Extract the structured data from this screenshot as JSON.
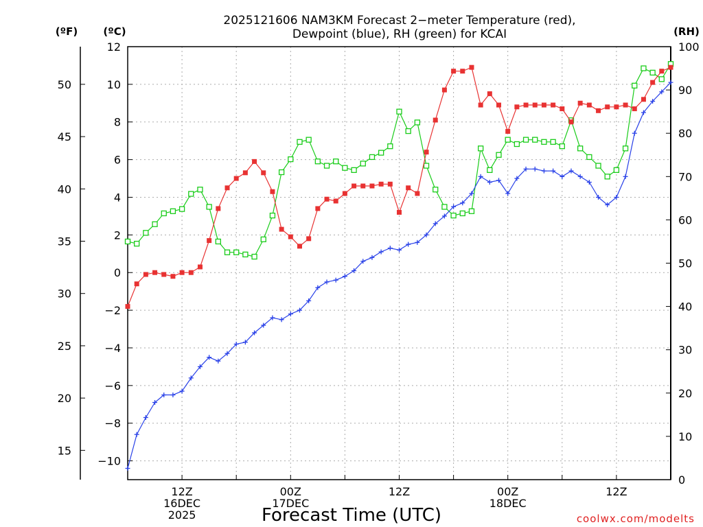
{
  "chart_data": {
    "type": "line",
    "title_line1": "2025121606 NAM3KM Forecast 2−meter Temperature (red),",
    "title_line2": "Dewpoint (blue), RH (green) for KCAI",
    "xlabel": "Forecast Time (UTC)",
    "credit": "coolwx.com/modelts",
    "unit_left_f": "(ºF)",
    "unit_left_c": "(ºC)",
    "unit_right": "(RH)",
    "x_start_hour": 6,
    "x_end_hour": 66,
    "c_range": [
      -11,
      12
    ],
    "rh_range": [
      0,
      100
    ],
    "c_ticks": [
      "−10",
      "−8",
      "−6",
      "−4",
      "−2",
      "0",
      "2",
      "4",
      "6",
      "8",
      "10",
      "12"
    ],
    "c_tick_values": [
      -10,
      -8,
      -6,
      -4,
      -2,
      0,
      2,
      4,
      6,
      8,
      10,
      12
    ],
    "f_ticks": [
      "15",
      "20",
      "25",
      "30",
      "35",
      "40",
      "45",
      "50"
    ],
    "f_tick_values": [
      15,
      20,
      25,
      30,
      35,
      40,
      45,
      50
    ],
    "rh_ticks": [
      "0",
      "10",
      "20",
      "30",
      "40",
      "50",
      "60",
      "70",
      "80",
      "90",
      "100"
    ],
    "rh_tick_values": [
      0,
      10,
      20,
      30,
      40,
      50,
      60,
      70,
      80,
      90,
      100
    ],
    "x_tick_labels": [
      {
        "hour": 12,
        "lines": [
          "12Z",
          "16DEC",
          "2025"
        ]
      },
      {
        "hour": 24,
        "lines": [
          "00Z",
          "17DEC"
        ]
      },
      {
        "hour": 36,
        "lines": [
          "12Z"
        ]
      },
      {
        "hour": 48,
        "lines": [
          "00Z",
          "18DEC"
        ]
      },
      {
        "hour": 60,
        "lines": [
          "12Z"
        ]
      }
    ],
    "series": [
      {
        "name": "Temperature",
        "color": "#e83232",
        "marker": "filled-square",
        "axis": "c",
        "values": [
          -1.8,
          -0.6,
          -0.1,
          0.0,
          -0.1,
          -0.2,
          0.0,
          0.0,
          0.3,
          1.7,
          3.4,
          4.5,
          5.0,
          5.3,
          5.9,
          5.3,
          4.3,
          2.3,
          1.9,
          1.4,
          1.8,
          3.4,
          3.9,
          3.8,
          4.2,
          4.6,
          4.6,
          4.6,
          4.7,
          4.7,
          3.2,
          4.5,
          4.2,
          6.4,
          8.1,
          9.7,
          10.7,
          10.7,
          10.9,
          8.9,
          9.5,
          8.9,
          7.5,
          8.8,
          8.9,
          8.9,
          8.9,
          8.9,
          8.7,
          8.0,
          9.0,
          8.9,
          8.6,
          8.8,
          8.8,
          8.9,
          8.7,
          9.2,
          10.1,
          10.7,
          10.9
        ]
      },
      {
        "name": "Dewpoint",
        "color": "#2840e8",
        "marker": "plus",
        "axis": "c",
        "values": [
          -10.4,
          -8.6,
          -7.7,
          -6.9,
          -6.5,
          -6.5,
          -6.3,
          -5.6,
          -5.0,
          -4.5,
          -4.7,
          -4.3,
          -3.8,
          -3.7,
          -3.2,
          -2.8,
          -2.4,
          -2.5,
          -2.2,
          -2.0,
          -1.5,
          -0.8,
          -0.5,
          -0.4,
          -0.2,
          0.1,
          0.6,
          0.8,
          1.1,
          1.3,
          1.2,
          1.5,
          1.6,
          2.0,
          2.6,
          3.0,
          3.5,
          3.7,
          4.2,
          5.1,
          4.8,
          4.9,
          4.2,
          5.0,
          5.5,
          5.5,
          5.4,
          5.4,
          5.1,
          5.4,
          5.1,
          4.8,
          4.0,
          3.6,
          4.0,
          5.1,
          7.4,
          8.5,
          9.1,
          9.6,
          10.1
        ]
      },
      {
        "name": "RH",
        "color": "#18cc18",
        "marker": "open-square",
        "axis": "rh",
        "values": [
          55,
          54.5,
          57,
          59,
          61.5,
          62,
          62.5,
          66,
          67,
          63,
          55,
          52.5,
          52.5,
          52,
          51.5,
          55.5,
          61,
          71,
          74,
          78,
          78.5,
          73.5,
          72.5,
          73.5,
          72,
          71.5,
          73,
          74.5,
          75.5,
          77,
          85,
          80.5,
          82.5,
          72.5,
          67,
          63,
          61,
          61.5,
          62,
          76.5,
          71.5,
          75,
          78.5,
          77.5,
          78.5,
          78.5,
          78,
          78,
          77,
          83,
          76.5,
          74.5,
          72.5,
          70,
          71.5,
          76.5,
          91,
          95,
          94,
          92.5,
          96
        ]
      }
    ]
  }
}
